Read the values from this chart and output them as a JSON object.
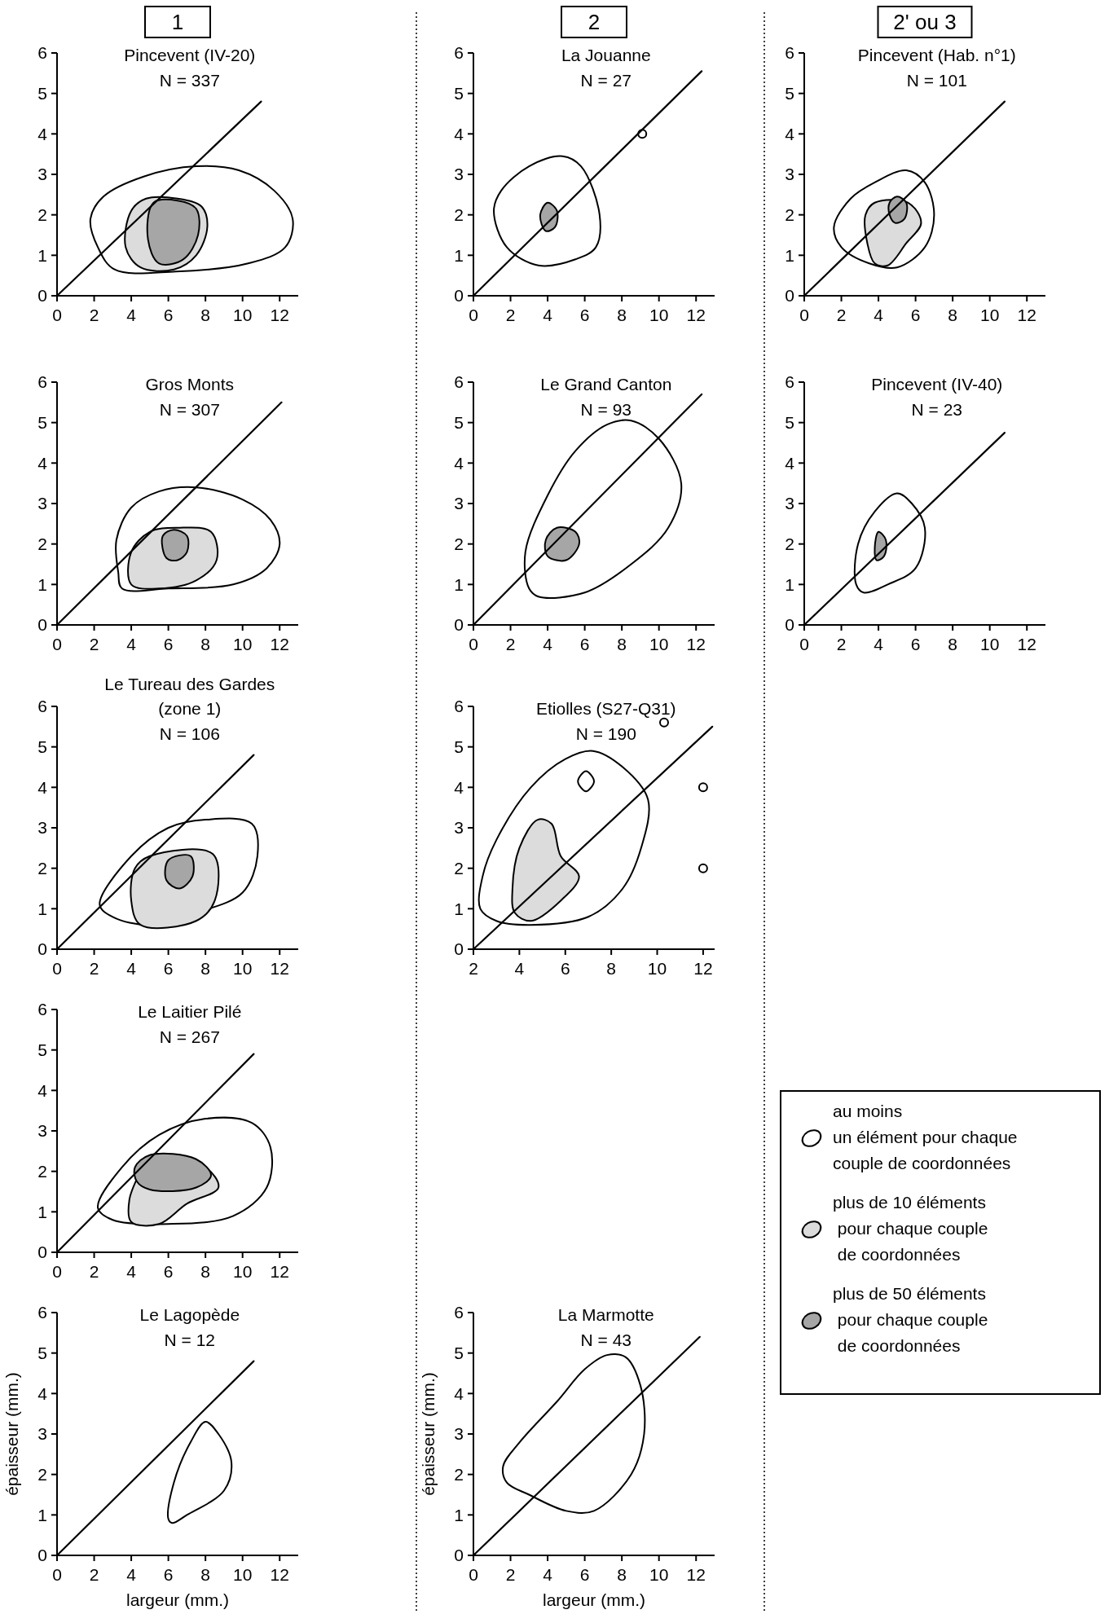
{
  "chart_data": [
    {
      "type": "line",
      "title": "Pincevent (IV-20)",
      "subtitle": "N = 337",
      "annotations": [
        "1"
      ],
      "xlim": [
        0,
        13
      ],
      "ylim": [
        0,
        6
      ],
      "xticks": [
        0,
        2,
        4,
        6,
        8,
        10,
        12
      ],
      "yticks": [
        0,
        1,
        2,
        3,
        4,
        5,
        6
      ],
      "series": [
        {
          "type": "line",
          "color": "#000000",
          "x": [
            0,
            11
          ],
          "values": [
            0,
            4.8
          ]
        }
      ]
    },
    {
      "type": "line",
      "title": "La Jouanne",
      "subtitle": "N = 27",
      "annotations": [
        "2"
      ],
      "xlim": [
        0,
        13
      ],
      "ylim": [
        0,
        6
      ],
      "xticks": [
        0,
        2,
        4,
        6,
        8,
        10,
        12
      ],
      "yticks": [
        0,
        1,
        2,
        3,
        4,
        5,
        6
      ],
      "series": [
        {
          "type": "line",
          "color": "#000000",
          "x": [
            0,
            12.3
          ],
          "values": [
            0,
            5.55
          ]
        },
        {
          "type": "scatter",
          "color": "#000000",
          "x": [
            9.1
          ],
          "values": [
            4
          ]
        }
      ]
    },
    {
      "type": "line",
      "title": "Pincevent (Hab. n°1)",
      "subtitle": "N = 101",
      "annotations": [
        "2' ou 3"
      ],
      "xlim": [
        0,
        13
      ],
      "ylim": [
        0,
        6
      ],
      "xticks": [
        0,
        2,
        4,
        6,
        8,
        10,
        12
      ],
      "yticks": [
        0,
        1,
        2,
        3,
        4,
        5,
        6
      ],
      "series": [
        {
          "type": "line",
          "color": "#000000",
          "x": [
            0,
            10.8
          ],
          "values": [
            0,
            4.8
          ]
        }
      ]
    },
    {
      "type": "line",
      "title": "Gros Monts",
      "subtitle": "N = 307",
      "xlim": [
        0,
        13
      ],
      "ylim": [
        0,
        6
      ],
      "xticks": [
        0,
        2,
        4,
        6,
        8,
        10,
        12
      ],
      "yticks": [
        0,
        1,
        2,
        3,
        4,
        5,
        6
      ],
      "series": [
        {
          "type": "line",
          "color": "#000000",
          "x": [
            0,
            12.1
          ],
          "values": [
            0,
            5.5
          ]
        }
      ]
    },
    {
      "type": "line",
      "title": "Le Grand Canton",
      "subtitle": "N = 93",
      "xlim": [
        0,
        13
      ],
      "ylim": [
        0,
        6
      ],
      "xticks": [
        0,
        2,
        4,
        6,
        8,
        10,
        12
      ],
      "yticks": [
        0,
        1,
        2,
        3,
        4,
        5,
        6
      ],
      "series": [
        {
          "type": "line",
          "color": "#000000",
          "x": [
            0,
            12.3
          ],
          "values": [
            0,
            5.7
          ]
        }
      ]
    },
    {
      "type": "line",
      "title": "Pincevent (IV-40)",
      "subtitle": "N = 23",
      "xlim": [
        0,
        13
      ],
      "ylim": [
        0,
        6
      ],
      "xticks": [
        0,
        2,
        4,
        6,
        8,
        10,
        12
      ],
      "yticks": [
        0,
        1,
        2,
        3,
        4,
        5,
        6
      ],
      "series": [
        {
          "type": "line",
          "color": "#000000",
          "x": [
            0,
            10.8
          ],
          "values": [
            0,
            4.75
          ]
        }
      ]
    },
    {
      "type": "line",
      "title": "Le Tureau des Gardes (zone 1)",
      "subtitle": "N = 106",
      "xlim": [
        0,
        13
      ],
      "ylim": [
        0,
        6
      ],
      "xticks": [
        0,
        2,
        4,
        6,
        8,
        10,
        12
      ],
      "yticks": [
        0,
        1,
        2,
        3,
        4,
        5,
        6
      ],
      "series": [
        {
          "type": "line",
          "color": "#000000",
          "x": [
            0,
            10.6
          ],
          "values": [
            0,
            4.8
          ]
        }
      ]
    },
    {
      "type": "line",
      "title": "Etiolles (S27-Q31)",
      "subtitle": "N = 190",
      "xlim": [
        2,
        12.5
      ],
      "ylim": [
        0,
        6
      ],
      "xticks": [
        2,
        4,
        6,
        8,
        10,
        12
      ],
      "yticks": [
        0,
        1,
        2,
        3,
        4,
        5,
        6
      ],
      "series": [
        {
          "type": "line",
          "color": "#000000",
          "x": [
            2,
            12.4
          ],
          "values": [
            0,
            5.5
          ]
        },
        {
          "type": "scatter",
          "color": "#000000",
          "x": [
            10.3,
            12,
            12
          ],
          "values": [
            5.6,
            4,
            2
          ]
        }
      ]
    },
    {
      "type": "line",
      "title": "Le Laitier Pilé",
      "subtitle": "N = 267",
      "xlim": [
        0,
        13
      ],
      "ylim": [
        0,
        6
      ],
      "xticks": [
        0,
        2,
        4,
        6,
        8,
        10,
        12
      ],
      "yticks": [
        0,
        1,
        2,
        3,
        4,
        5,
        6
      ],
      "series": [
        {
          "type": "line",
          "color": "#000000",
          "x": [
            0,
            10.6
          ],
          "values": [
            0,
            4.9
          ]
        }
      ]
    },
    {
      "type": "other",
      "annotations": [
        "au moins\nun élément pour chaque\ncouple de coordonnées",
        "plus de 10 éléments\n pour chaque couple\n de coordonnées",
        "plus de 50 éléments\n pour chaque couple\n de coordonnées"
      ]
    },
    {
      "type": "line",
      "title": "Le Lagopède",
      "subtitle": "N = 12",
      "xlabel": "largeur (mm.)",
      "ylabel": "épaisseur (mm.)",
      "xlim": [
        0,
        13
      ],
      "ylim": [
        0,
        6
      ],
      "xticks": [
        0,
        2,
        4,
        6,
        8,
        10,
        12
      ],
      "yticks": [
        0,
        1,
        2,
        3,
        4,
        5,
        6
      ],
      "series": [
        {
          "type": "line",
          "color": "#000000",
          "x": [
            0,
            10.6
          ],
          "values": [
            0,
            4.8
          ]
        }
      ]
    },
    {
      "type": "line",
      "title": "La Marmotte",
      "subtitle": "N = 43",
      "xlabel": "largeur (mm.)",
      "ylabel": "épaisseur (mm.)",
      "xlim": [
        0,
        13
      ],
      "ylim": [
        0,
        6
      ],
      "xticks": [
        0,
        2,
        4,
        6,
        8,
        10,
        12
      ],
      "yticks": [
        0,
        1,
        2,
        3,
        4,
        5,
        6
      ],
      "series": [
        {
          "type": "line",
          "color": "#000000",
          "x": [
            0,
            12.2
          ],
          "values": [
            0,
            5.4
          ]
        }
      ]
    }
  ]
}
